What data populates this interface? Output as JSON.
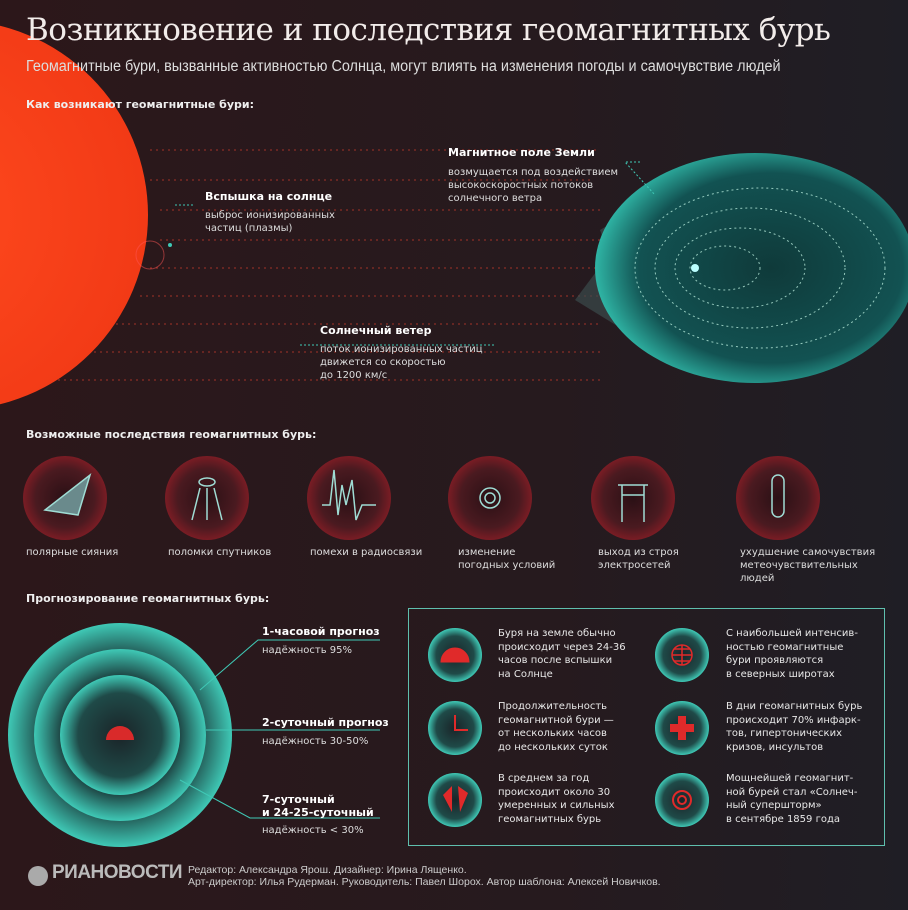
{
  "header": {
    "title": "Возникновение и последствия геомагнитных бурь",
    "subtitle": "Геомагнитные бури, вызванные активностью Солнца, могут влиять на изменения погоды и самочувствие людей"
  },
  "origin": {
    "heading": "Как возникают геомагнитные бури:",
    "flare": {
      "title": "Вспышка на солнце",
      "text": "выброс ионизированных\nчастиц (плазмы)"
    },
    "wind": {
      "title": "Солнечный ветер",
      "text": "поток ионизированных частиц\nдвижется со скоростью\nдо 1200 км/с"
    },
    "field": {
      "title": "Магнитное поле Земли",
      "text": "возмущается под воздействием\nвысокоскоростных потоков\nсолнечного ветра"
    }
  },
  "consequences": {
    "heading": "Возможные последствия геомагнитных бурь:",
    "items": [
      {
        "icon": "aurora-icon",
        "label": "полярные сияния"
      },
      {
        "icon": "satellite-icon",
        "label": "поломки спутников"
      },
      {
        "icon": "radio-wave-icon",
        "label": "помехи в радиосвязи"
      },
      {
        "icon": "weather-icon",
        "label": "изменение\nпогодных условий"
      },
      {
        "icon": "power-line-icon",
        "label": "выход из строя\nэлектросетей"
      },
      {
        "icon": "pill-icon",
        "label": "ухудшение самочувствия\nметеочувствительных\nлюдей"
      }
    ]
  },
  "forecast": {
    "heading": "Прогнозирование геомагнитных бурь:",
    "items": [
      {
        "title": "1-часовой прогноз",
        "reliability": "надёжность 95%"
      },
      {
        "title": "2-суточный прогноз",
        "reliability": "надёжность 30-50%"
      },
      {
        "title": "7-суточный\nи 24-25-суточный",
        "reliability": "надёжность < 30%"
      }
    ]
  },
  "facts": [
    {
      "icon": "sun-dial-icon",
      "text": "Буря на земле обычно\nпроисходит через 24-36\nчасов после вспышки\nна Солнце"
    },
    {
      "icon": "globe-icon",
      "text": "С наибольшей интенсив-\nностью геомагнитные\nбури проявляются\nв северных широтах"
    },
    {
      "icon": "clock-icon",
      "text": "Продолжительность\nгеомагнитной бури —\nот нескольких часов\nдо нескольких суток"
    },
    {
      "icon": "medical-cross-icon",
      "text": "В дни геомагнитных бурь\nпроисходит 70% инфарк-\nтов, гипертонических\nкризов, инсультов"
    },
    {
      "icon": "flare-icon",
      "text": "В среднем за год\nпроисходит около 30\nумеренных и сильных\nгеомагнитных бурь"
    },
    {
      "icon": "storm-icon",
      "text": "Мощнейшей геомагнит-\nной бурей стал «Солнеч-\nный супершторм»\nв сентябре 1859 года"
    }
  ],
  "footer": {
    "logo": "РИАНОВОСТИ",
    "credits": "Редактор: Александра Ярош. Дизайнер: Ирина Лященко.\nАрт-директор: Илья Рудерман. Руководитель: Павел Шорох. Автор шаблона: Алексей Новичков."
  },
  "colors": {
    "sun": "#ff3b1a",
    "teal": "#2fb5a5",
    "accent_red": "#d92a2a",
    "background": "#2a1a1d"
  }
}
